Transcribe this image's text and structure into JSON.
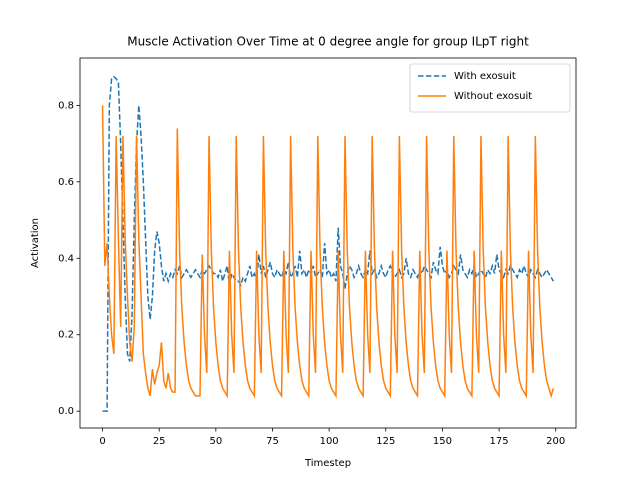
{
  "chart_data": {
    "type": "line",
    "title": "Muscle Activation Over Time at 0 degree angle for group ILpT right",
    "xlabel": "Timestep",
    "ylabel": "Activation",
    "x": [
      0,
      1,
      2,
      3,
      4,
      5,
      6,
      7,
      8,
      9,
      10,
      11,
      12,
      13,
      14,
      15,
      16,
      17,
      18,
      19,
      20,
      21,
      22,
      23,
      24,
      25,
      26,
      27,
      28,
      29,
      30,
      31,
      32,
      33,
      34,
      35,
      36,
      37,
      38,
      39,
      40,
      41,
      42,
      43,
      44,
      45,
      46,
      47,
      48,
      49,
      50,
      51,
      52,
      53,
      54,
      55,
      56,
      57,
      58,
      59,
      60,
      61,
      62,
      63,
      64,
      65,
      66,
      67,
      68,
      69,
      70,
      71,
      72,
      73,
      74,
      75,
      76,
      77,
      78,
      79,
      80,
      81,
      82,
      83,
      84,
      85,
      86,
      87,
      88,
      89,
      90,
      91,
      92,
      93,
      94,
      95,
      96,
      97,
      98,
      99,
      100,
      101,
      102,
      103,
      104,
      105,
      106,
      107,
      108,
      109,
      110,
      111,
      112,
      113,
      114,
      115,
      116,
      117,
      118,
      119,
      120,
      121,
      122,
      123,
      124,
      125,
      126,
      127,
      128,
      129,
      130,
      131,
      132,
      133,
      134,
      135,
      136,
      137,
      138,
      139,
      140,
      141,
      142,
      143,
      144,
      145,
      146,
      147,
      148,
      149,
      150,
      151,
      152,
      153,
      154,
      155,
      156,
      157,
      158,
      159,
      160,
      161,
      162,
      163,
      164,
      165,
      166,
      167,
      168,
      169,
      170,
      171,
      172,
      173,
      174,
      175,
      176,
      177,
      178,
      179,
      180,
      181,
      182,
      183,
      184,
      185,
      186,
      187,
      188,
      189,
      190,
      191,
      192,
      193,
      194,
      195,
      196,
      197,
      198,
      199
    ],
    "series": [
      {
        "name": "With exosuit",
        "color": "#1f77b4",
        "linestyle": "dashed",
        "values": [
          0,
          0,
          0,
          0.8,
          0.87,
          0.875,
          0.87,
          0.86,
          0.7,
          0.5,
          0.3,
          0.15,
          0.13,
          0.25,
          0.5,
          0.7,
          0.8,
          0.72,
          0.6,
          0.45,
          0.3,
          0.24,
          0.3,
          0.42,
          0.47,
          0.44,
          0.38,
          0.34,
          0.36,
          0.34,
          0.36,
          0.35,
          0.37,
          0.36,
          0.38,
          0.35,
          0.36,
          0.37,
          0.36,
          0.35,
          0.36,
          0.37,
          0.36,
          0.35,
          0.37,
          0.36,
          0.37,
          0.38,
          0.37,
          0.36,
          0.36,
          0.35,
          0.37,
          0.34,
          0.36,
          0.38,
          0.33,
          0.36,
          0.35,
          0.34,
          0.34,
          0.33,
          0.35,
          0.34,
          0.36,
          0.38,
          0.35,
          0.36,
          0.34,
          0.41,
          0.36,
          0.38,
          0.35,
          0.37,
          0.39,
          0.36,
          0.35,
          0.37,
          0.36,
          0.35,
          0.37,
          0.36,
          0.39,
          0.35,
          0.36,
          0.38,
          0.35,
          0.42,
          0.36,
          0.37,
          0.35,
          0.37,
          0.36,
          0.38,
          0.35,
          0.36,
          0.37,
          0.35,
          0.44,
          0.36,
          0.37,
          0.35,
          0.36,
          0.34,
          0.48,
          0.38,
          0.36,
          0.32,
          0.36,
          0.38,
          0.37,
          0.35,
          0.36,
          0.38,
          0.36,
          0.35,
          0.37,
          0.36,
          0.42,
          0.36,
          0.37,
          0.35,
          0.36,
          0.38,
          0.36,
          0.35,
          0.37,
          0.38,
          0.36,
          0.35,
          0.36,
          0.37,
          0.35,
          0.36,
          0.4,
          0.36,
          0.35,
          0.37,
          0.36,
          0.35,
          0.37,
          0.36,
          0.38,
          0.37,
          0.36,
          0.35,
          0.39,
          0.37,
          0.36,
          0.43,
          0.38,
          0.36,
          0.37,
          0.35,
          0.36,
          0.38,
          0.37,
          0.36,
          0.41,
          0.37,
          0.36,
          0.35,
          0.37,
          0.36,
          0.38,
          0.35,
          0.36,
          0.37,
          0.36,
          0.35,
          0.37,
          0.36,
          0.38,
          0.36,
          0.41,
          0.37,
          0.36,
          0.35,
          0.37,
          0.36,
          0.38,
          0.37,
          0.36,
          0.35,
          0.37,
          0.36,
          0.38,
          0.36,
          0.35,
          0.37,
          0.36,
          0.35,
          0.37,
          0.36,
          0.35,
          0.36,
          0.37,
          0.36,
          0.35,
          0.34
        ]
      },
      {
        "name": "Without exosuit",
        "color": "#ff7f0e",
        "linestyle": "solid",
        "values": [
          0.8,
          0.38,
          0.44,
          0.3,
          0.2,
          0.15,
          0.72,
          0.45,
          0.22,
          0.72,
          0.45,
          0.3,
          0.18,
          0.13,
          0.22,
          0.72,
          0.45,
          0.3,
          0.15,
          0.1,
          0.06,
          0.04,
          0.11,
          0.07,
          0.1,
          0.12,
          0.18,
          0.08,
          0.06,
          0.1,
          0.06,
          0.05,
          0.05,
          0.74,
          0.42,
          0.27,
          0.18,
          0.12,
          0.08,
          0.06,
          0.05,
          0.04,
          0.04,
          0.04,
          0.41,
          0.2,
          0.1,
          0.72,
          0.42,
          0.27,
          0.18,
          0.12,
          0.08,
          0.06,
          0.05,
          0.04,
          0.42,
          0.2,
          0.1,
          0.72,
          0.42,
          0.27,
          0.18,
          0.12,
          0.08,
          0.06,
          0.05,
          0.04,
          0.42,
          0.2,
          0.1,
          0.72,
          0.42,
          0.27,
          0.18,
          0.12,
          0.08,
          0.06,
          0.05,
          0.04,
          0.42,
          0.2,
          0.1,
          0.72,
          0.42,
          0.27,
          0.18,
          0.12,
          0.08,
          0.06,
          0.05,
          0.04,
          0.42,
          0.2,
          0.1,
          0.72,
          0.42,
          0.27,
          0.18,
          0.12,
          0.08,
          0.06,
          0.05,
          0.04,
          0.42,
          0.2,
          0.1,
          0.72,
          0.42,
          0.27,
          0.18,
          0.12,
          0.08,
          0.06,
          0.05,
          0.04,
          0.42,
          0.2,
          0.1,
          0.72,
          0.42,
          0.27,
          0.18,
          0.12,
          0.08,
          0.06,
          0.05,
          0.04,
          0.42,
          0.2,
          0.1,
          0.72,
          0.42,
          0.27,
          0.18,
          0.12,
          0.08,
          0.06,
          0.05,
          0.04,
          0.42,
          0.2,
          0.1,
          0.72,
          0.42,
          0.27,
          0.18,
          0.12,
          0.08,
          0.06,
          0.05,
          0.04,
          0.42,
          0.2,
          0.1,
          0.72,
          0.42,
          0.27,
          0.18,
          0.12,
          0.08,
          0.06,
          0.05,
          0.04,
          0.42,
          0.2,
          0.1,
          0.72,
          0.42,
          0.27,
          0.18,
          0.12,
          0.08,
          0.06,
          0.05,
          0.04,
          0.42,
          0.2,
          0.1,
          0.72,
          0.42,
          0.27,
          0.18,
          0.12,
          0.08,
          0.06,
          0.05,
          0.04,
          0.42,
          0.2,
          0.1,
          0.72,
          0.42,
          0.27,
          0.18,
          0.12,
          0.08,
          0.06,
          0.04,
          0.06
        ]
      }
    ],
    "xlim": [
      -9.95,
      208.95
    ],
    "xticks": [
      0,
      25,
      50,
      75,
      100,
      125,
      150,
      175,
      200
    ],
    "ylim": [
      -0.044,
      0.924
    ],
    "yticks": [
      {
        "value": 0,
        "label": "0.0"
      },
      0.2,
      0.4,
      0.6,
      0.8
    ],
    "legend": "upper right"
  }
}
